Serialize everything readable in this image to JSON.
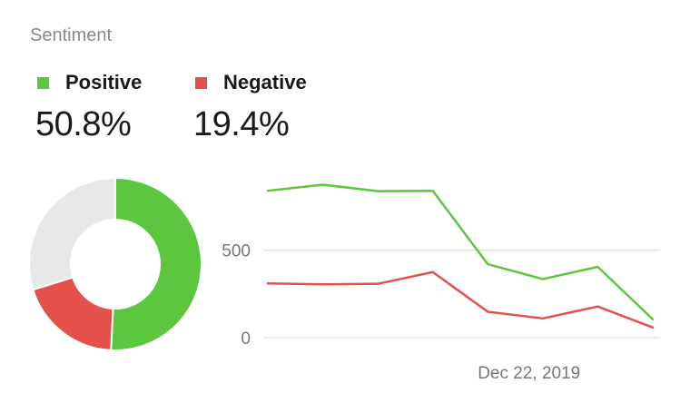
{
  "widget": {
    "title": "Sentiment"
  },
  "legend": [
    {
      "name": "Positive",
      "value_text": "50.8%",
      "color": "#5cc63f"
    },
    {
      "name": "Negative",
      "value_text": "19.4%",
      "color": "#e4504b"
    }
  ],
  "chart_data": [
    {
      "type": "pie",
      "style": "donut",
      "slices": [
        {
          "label": "Positive",
          "value": 50.8,
          "color": "#5cc63f"
        },
        {
          "label": "Negative",
          "value": 19.4,
          "color": "#e4504b"
        },
        {
          "label": "",
          "value": 29.8,
          "color": "#e8e8e8"
        }
      ]
    },
    {
      "type": "line",
      "x": [
        1,
        2,
        3,
        4,
        5,
        6,
        7,
        8
      ],
      "x_tick_labels": [
        {
          "x": 5.75,
          "label": "Dec 22, 2019"
        }
      ],
      "series": [
        {
          "name": "Positive",
          "color": "#5cc63f",
          "values": [
            840,
            875,
            838,
            840,
            420,
            335,
            405,
            105
          ]
        },
        {
          "name": "Negative",
          "color": "#e4504b",
          "values": [
            310,
            305,
            308,
            375,
            148,
            110,
            178,
            58
          ]
        }
      ],
      "y_ticks": [
        0,
        500
      ],
      "ylim": [
        0,
        950
      ],
      "grid": true
    }
  ]
}
